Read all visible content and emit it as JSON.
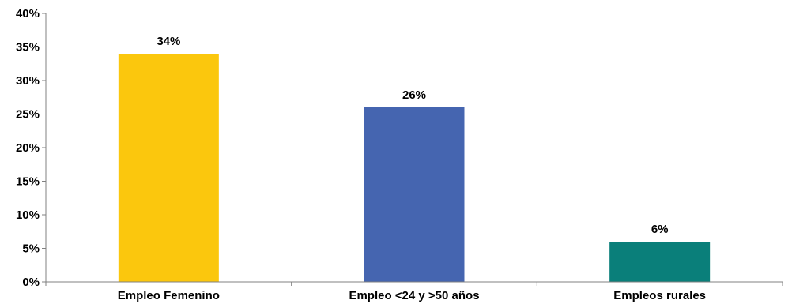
{
  "chart_data": {
    "type": "bar",
    "title": "",
    "xlabel": "",
    "ylabel": "",
    "categories": [
      "Empleo Femenino",
      "Empleo <24 y >50 años",
      "Empleos rurales"
    ],
    "values": [
      34,
      26,
      6
    ],
    "data_labels": [
      "34%",
      "26%",
      "6%"
    ],
    "colors": [
      "#FBC70D",
      "#4565B0",
      "#0A7F7A"
    ],
    "ylim": [
      0,
      40
    ],
    "yticks": [
      0,
      5,
      10,
      15,
      20,
      25,
      30,
      35,
      40
    ],
    "ytick_labels": [
      "0%",
      "5%",
      "10%",
      "15%",
      "20%",
      "25%",
      "30%",
      "35%",
      "40%"
    ],
    "grid": false,
    "legend": "none"
  }
}
